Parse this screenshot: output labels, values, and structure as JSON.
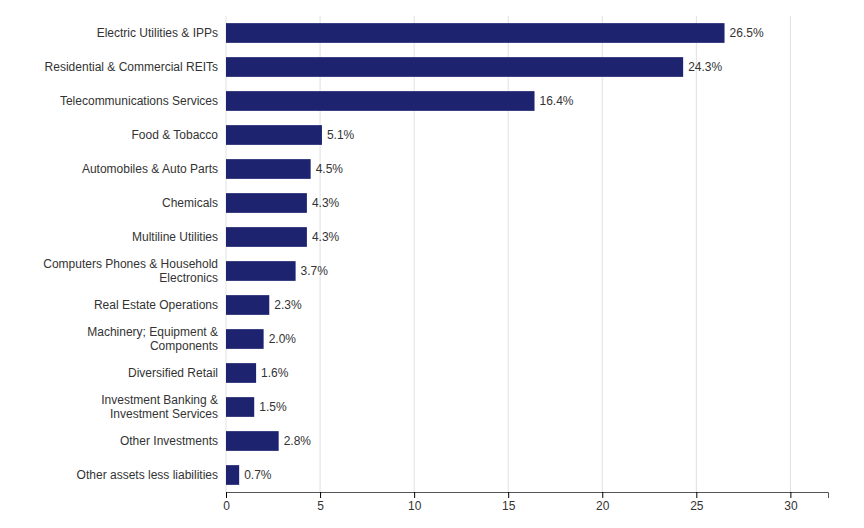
{
  "chart_data": {
    "type": "bar",
    "orientation": "horizontal",
    "categories": [
      "Electric Utilities & IPPs",
      "Residential & Commercial REITs",
      "Telecommunications Services",
      "Food & Tobacco",
      "Automobiles & Auto Parts",
      "Chemicals",
      "Multiline Utilities",
      "Computers Phones & Household\nElectronics",
      "Real Estate Operations",
      "Machinery; Equipment &\nComponents",
      "Diversified Retail",
      "Investment Banking &\nInvestment Services",
      "Other Investments",
      "Other assets less liabilities"
    ],
    "values": [
      26.5,
      24.3,
      16.4,
      5.1,
      4.5,
      4.3,
      4.3,
      3.7,
      2.3,
      2.0,
      1.6,
      1.5,
      2.8,
      0.7
    ],
    "value_labels": [
      "26.5%",
      "24.3%",
      "16.4%",
      "5.1%",
      "4.5%",
      "4.3%",
      "4.3%",
      "3.7%",
      "2.3%",
      "2.0%",
      "1.6%",
      "1.5%",
      "2.8%",
      "0.7%"
    ],
    "data_labels": true,
    "color": "#1e2370",
    "xlim": [
      0,
      32
    ],
    "xticks": [
      0,
      5,
      10,
      15,
      20,
      25,
      30
    ],
    "grid": true
  }
}
